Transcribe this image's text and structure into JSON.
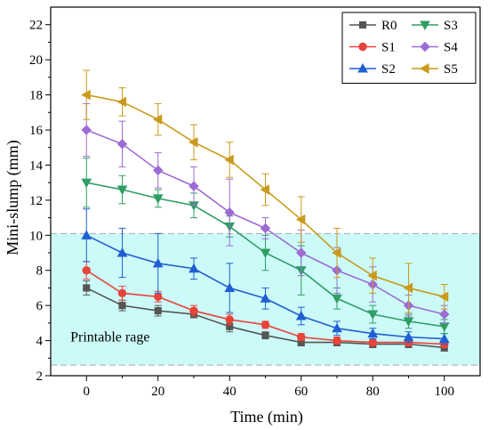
{
  "chart_data": {
    "type": "line",
    "xlabel": "Time (min)",
    "ylabel": "Mini-slump (mm)",
    "xlim": [
      -10,
      110
    ],
    "ylim": [
      2,
      23
    ],
    "xticks": [
      0,
      20,
      40,
      60,
      80,
      100
    ],
    "yticks": [
      2,
      4,
      6,
      8,
      10,
      12,
      14,
      16,
      18,
      20,
      22
    ],
    "x": [
      0,
      10,
      20,
      30,
      40,
      50,
      60,
      70,
      80,
      90,
      100
    ],
    "grid": false,
    "legend_position": "top-right",
    "band": {
      "y_range": [
        2.6,
        10.1
      ],
      "label": "Printable rage",
      "color": "#ccfaf8"
    },
    "series": [
      {
        "name": "R0",
        "color": "#555555",
        "marker": "square",
        "values": [
          7.0,
          6.0,
          5.7,
          5.5,
          4.8,
          4.3,
          3.9,
          3.9,
          3.8,
          3.8,
          3.6
        ],
        "errors": [
          0.4,
          0.3,
          0.3,
          0.2,
          0.3,
          0.2,
          0.2,
          0.2,
          0.2,
          0.2,
          0.2
        ]
      },
      {
        "name": "S1",
        "color": "#e8443a",
        "marker": "circle",
        "values": [
          8.0,
          6.7,
          6.5,
          5.7,
          5.2,
          4.9,
          4.2,
          4.0,
          3.9,
          3.9,
          3.8
        ],
        "errors": [
          0.5,
          0.4,
          0.3,
          0.3,
          0.3,
          0.2,
          0.2,
          0.2,
          0.2,
          0.2,
          0.2
        ]
      },
      {
        "name": "S2",
        "color": "#1f5fd1",
        "marker": "triangle-up",
        "values": [
          10.0,
          9.0,
          8.4,
          8.1,
          7.0,
          6.4,
          5.4,
          4.7,
          4.4,
          4.2,
          4.1
        ],
        "errors": [
          1.5,
          1.4,
          1.7,
          0.6,
          1.4,
          0.6,
          0.5,
          0.4,
          0.3,
          0.3,
          0.3
        ]
      },
      {
        "name": "S3",
        "color": "#2e9e63",
        "marker": "triangle-down",
        "values": [
          13.0,
          12.6,
          12.1,
          11.7,
          10.5,
          9.0,
          8.0,
          6.4,
          5.5,
          5.1,
          4.8
        ],
        "errors": [
          1.4,
          0.8,
          0.5,
          0.7,
          0.6,
          1.0,
          1.4,
          0.6,
          0.5,
          0.4,
          0.4
        ]
      },
      {
        "name": "S4",
        "color": "#9d6bd4",
        "marker": "diamond",
        "values": [
          16.0,
          15.2,
          13.7,
          12.8,
          11.3,
          10.4,
          9.0,
          8.0,
          7.2,
          6.0,
          5.5
        ],
        "errors": [
          1.5,
          1.3,
          1.0,
          1.1,
          1.9,
          0.6,
          1.3,
          1.3,
          1.0,
          0.6,
          0.5
        ]
      },
      {
        "name": "S5",
        "color": "#c99a1c",
        "marker": "triangle-left",
        "values": [
          18.0,
          17.6,
          16.6,
          15.3,
          14.3,
          12.6,
          10.9,
          9.0,
          7.7,
          7.0,
          6.5
        ],
        "errors": [
          1.4,
          0.8,
          0.9,
          1.0,
          1.0,
          0.9,
          1.3,
          1.4,
          1.0,
          1.4,
          0.7
        ]
      }
    ]
  }
}
